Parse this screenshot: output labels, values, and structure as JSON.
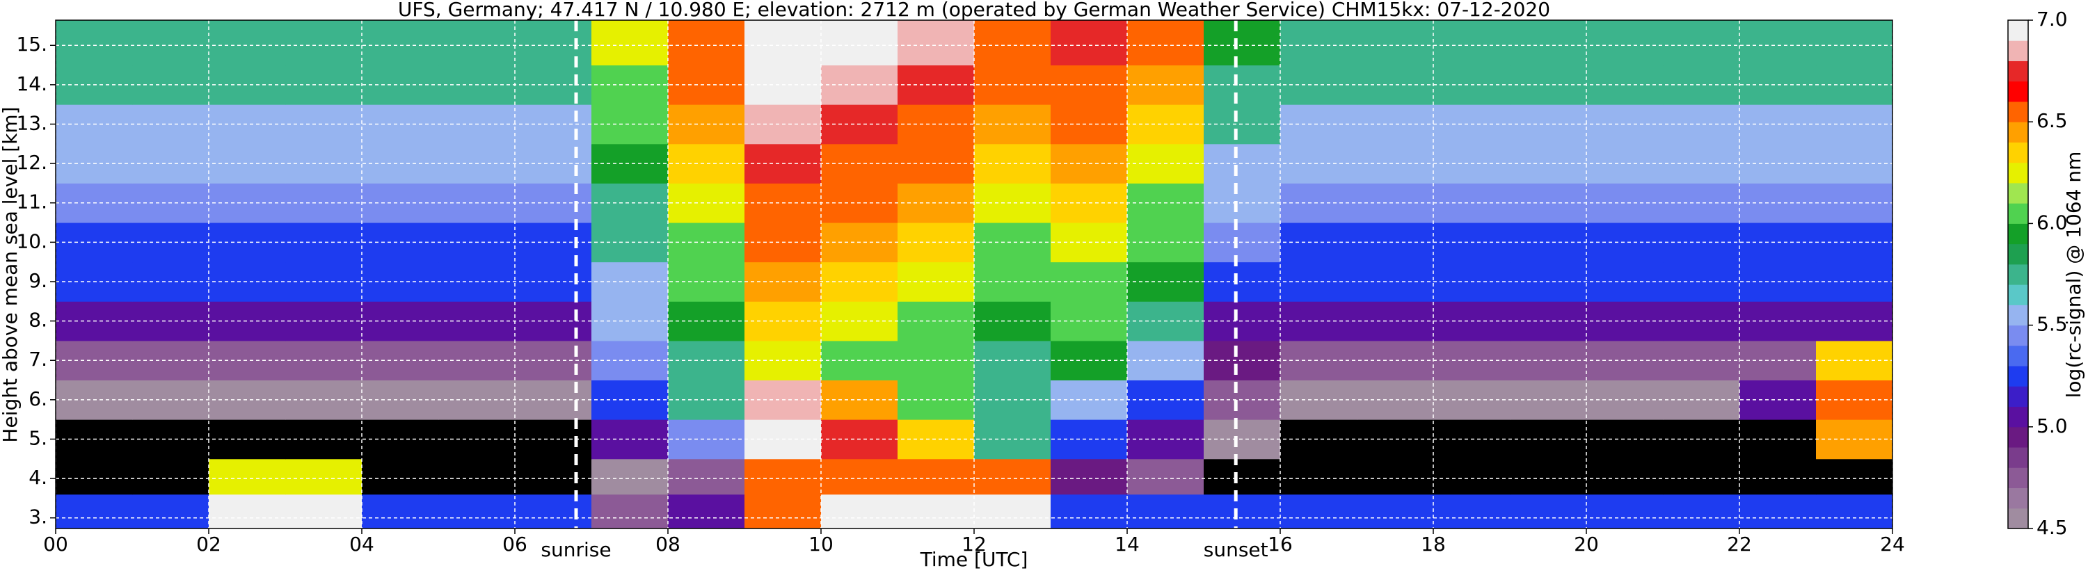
{
  "chart_data": {
    "type": "heatmap",
    "title": "UFS, Germany; 47.417 N / 10.980 E; elevation: 2712 m  (operated by German Weather Service)    CHM15kx: 07-12-2020",
    "x_label": "Time [UTC]",
    "y_label": "Height above mean sea level [km]",
    "colorbar_label": "log(rc-signal) @ 1064 nm",
    "x": [
      0.5,
      1.5,
      2.5,
      3.5,
      4.5,
      5.5,
      6.5,
      7.5,
      8.5,
      9.5,
      10.5,
      11.5,
      12.5,
      13.5,
      14.5,
      15.5,
      16.5,
      17.5,
      18.5,
      19.5,
      20.5,
      21.5,
      22.5,
      23.5
    ],
    "y": [
      3.2,
      4,
      5,
      6,
      7,
      8,
      9,
      10,
      11,
      12,
      13,
      14,
      15
    ],
    "values": [
      [
        5.2,
        5.2,
        6.9,
        6.9,
        5.2,
        5.2,
        5.2,
        4.8,
        5.0,
        6.5,
        6.9,
        6.9,
        6.9,
        5.3,
        5.2,
        5.2,
        5.2,
        5.2,
        5.2,
        5.2,
        5.2,
        5.2,
        5.2,
        5.2
      ],
      [
        4.2,
        4.2,
        6.2,
        6.2,
        4.2,
        4.2,
        4.2,
        4.6,
        4.8,
        6.6,
        6.5,
        6.6,
        6.6,
        4.9,
        4.8,
        4.3,
        4.2,
        4.2,
        4.2,
        4.2,
        4.2,
        4.2,
        4.2,
        4.2
      ],
      [
        4.4,
        4.4,
        4.4,
        4.4,
        4.4,
        4.4,
        4.4,
        5.0,
        5.4,
        6.9,
        6.7,
        6.3,
        5.8,
        5.3,
        5.0,
        4.5,
        4.4,
        4.4,
        4.4,
        4.4,
        4.4,
        4.4,
        4.4,
        6.4
      ],
      [
        4.6,
        4.6,
        4.6,
        4.6,
        4.6,
        4.6,
        4.6,
        5.2,
        5.7,
        6.8,
        6.4,
        6.0,
        5.8,
        5.6,
        5.3,
        4.7,
        4.6,
        4.6,
        4.6,
        4.6,
        4.6,
        4.6,
        5.0,
        6.5
      ],
      [
        4.8,
        4.8,
        4.8,
        4.8,
        4.8,
        4.8,
        4.8,
        5.4,
        5.8,
        6.2,
        6.1,
        6.0,
        5.8,
        5.9,
        5.6,
        4.9,
        4.8,
        4.8,
        4.8,
        4.8,
        4.8,
        4.8,
        4.8,
        6.3
      ],
      [
        5.0,
        5.0,
        5.0,
        5.0,
        5.0,
        5.0,
        5.0,
        5.5,
        5.9,
        6.3,
        6.2,
        6.1,
        5.9,
        6.0,
        5.8,
        5.1,
        5.0,
        5.0,
        5.0,
        5.0,
        5.0,
        5.0,
        5.0,
        5.0
      ],
      [
        5.2,
        5.2,
        5.2,
        5.2,
        5.2,
        5.2,
        5.2,
        5.6,
        6.0,
        6.4,
        6.3,
        6.2,
        6.0,
        6.1,
        5.9,
        5.3,
        5.2,
        5.2,
        5.2,
        5.2,
        5.2,
        5.2,
        5.2,
        5.2
      ],
      [
        5.3,
        5.3,
        5.3,
        5.3,
        5.3,
        5.3,
        5.3,
        5.7,
        6.1,
        6.5,
        6.4,
        6.3,
        6.1,
        6.2,
        6.0,
        5.4,
        5.3,
        5.3,
        5.3,
        5.3,
        5.3,
        5.3,
        5.3,
        5.3
      ],
      [
        5.4,
        5.4,
        5.4,
        5.4,
        5.4,
        5.4,
        5.4,
        5.8,
        6.2,
        6.6,
        6.5,
        6.4,
        6.2,
        6.3,
        6.1,
        5.5,
        5.4,
        5.4,
        5.4,
        5.4,
        5.4,
        5.4,
        5.4,
        5.4
      ],
      [
        5.5,
        5.5,
        5.5,
        5.5,
        5.5,
        5.5,
        5.5,
        5.9,
        6.3,
        6.7,
        6.6,
        6.5,
        6.3,
        6.4,
        6.2,
        5.6,
        5.5,
        5.5,
        5.5,
        5.5,
        5.5,
        5.5,
        5.5,
        5.5
      ],
      [
        5.6,
        5.6,
        5.6,
        5.6,
        5.6,
        5.6,
        5.6,
        6.0,
        6.4,
        6.8,
        6.7,
        6.6,
        6.4,
        6.5,
        6.3,
        5.7,
        5.6,
        5.6,
        5.6,
        5.6,
        5.6,
        5.6,
        5.6,
        5.6
      ],
      [
        5.7,
        5.7,
        5.7,
        5.7,
        5.7,
        5.7,
        5.7,
        6.1,
        6.5,
        6.9,
        6.8,
        6.7,
        6.5,
        6.6,
        6.4,
        5.8,
        5.7,
        5.7,
        5.7,
        5.7,
        5.7,
        5.7,
        5.7,
        5.7
      ],
      [
        5.8,
        5.8,
        5.8,
        5.8,
        5.8,
        5.8,
        5.8,
        6.2,
        6.6,
        6.9,
        6.9,
        6.8,
        6.6,
        6.7,
        6.5,
        5.9,
        5.8,
        5.8,
        5.8,
        5.8,
        5.8,
        5.8,
        5.8,
        5.8
      ]
    ],
    "xlim": [
      0,
      24
    ],
    "ylim": [
      2.73,
      15.64
    ],
    "clim": [
      4.5,
      7.0
    ],
    "xticks": [
      {
        "value": 0,
        "label": "00"
      },
      {
        "value": 2,
        "label": "02"
      },
      {
        "value": 4,
        "label": "04"
      },
      {
        "value": 6,
        "label": "06"
      },
      {
        "value": 8,
        "label": "08"
      },
      {
        "value": 10,
        "label": "10"
      },
      {
        "value": 12,
        "label": "12"
      },
      {
        "value": 14,
        "label": "14"
      },
      {
        "value": 16,
        "label": "16"
      },
      {
        "value": 18,
        "label": "18"
      },
      {
        "value": 20,
        "label": "20"
      },
      {
        "value": 22,
        "label": "22"
      },
      {
        "value": 24,
        "label": "24"
      }
    ],
    "yticks": [
      {
        "value": 3,
        "label": "3."
      },
      {
        "value": 4,
        "label": "4."
      },
      {
        "value": 5,
        "label": "5."
      },
      {
        "value": 6,
        "label": "6."
      },
      {
        "value": 7,
        "label": "7."
      },
      {
        "value": 8,
        "label": "8."
      },
      {
        "value": 9,
        "label": "9."
      },
      {
        "value": 10,
        "label": "10."
      },
      {
        "value": 11,
        "label": "11."
      },
      {
        "value": 12,
        "label": "12."
      },
      {
        "value": 13,
        "label": "13."
      },
      {
        "value": 14,
        "label": "14."
      },
      {
        "value": 15,
        "label": "15."
      }
    ],
    "cticks": [
      4.5,
      {
        "value": 5,
        "label": "5.0"
      },
      5.5,
      {
        "value": 6,
        "label": "6.0"
      },
      6.5,
      {
        "value": 7,
        "label": "7.0"
      }
    ],
    "annotations": [
      {
        "x": 6.8,
        "text": "sunrise"
      },
      {
        "x": 15.42,
        "text": "sunset"
      }
    ],
    "grid": true,
    "under_color": "#000000",
    "colormap": [
      "#a08ca0",
      "#9a78a0",
      "#8c5a96",
      "#7a3c8c",
      "#6a1a82",
      "#5a10a0",
      "#3c1ec8",
      "#1e3cf0",
      "#4a6af0",
      "#7a8cf0",
      "#96b4f0",
      "#5ac8c8",
      "#3cb48c",
      "#1ea050",
      "#14a028",
      "#50d250",
      "#a0e650",
      "#e6f000",
      "#ffd200",
      "#ffa000",
      "#ff6400",
      "#ff0000",
      "#e62828",
      "#f0b4b4",
      "#f0f0f0"
    ]
  }
}
